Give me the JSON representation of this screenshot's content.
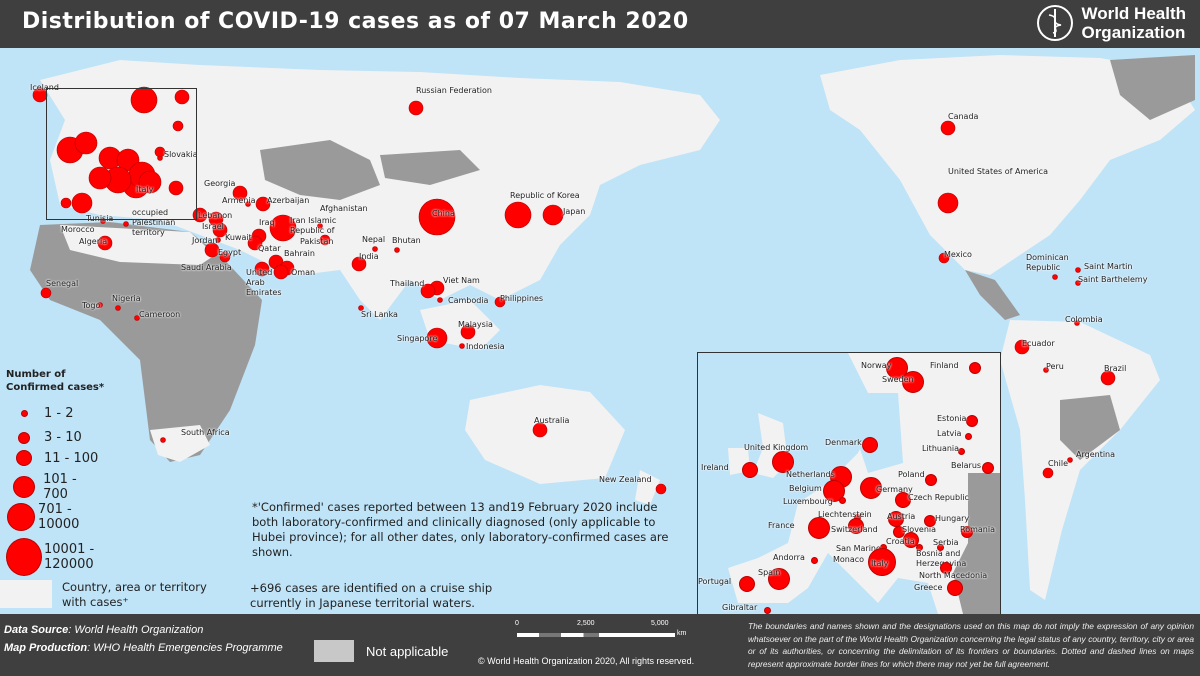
{
  "header": {
    "title": "Distribution of COVID-19 cases as of 07 March 2020",
    "org_line1": "World Health",
    "org_line2": "Organization"
  },
  "colors": {
    "bubble": "#ff0000",
    "header": "#3f3f3f",
    "ocean": "#bfe3f7",
    "land_cases": "#f2f2f2",
    "land_na": "#9a9a9a"
  },
  "legend": {
    "title_line1": "Number of",
    "title_line2": "Confirmed cases*",
    "ranges": [
      "1 - 2",
      "3 - 10",
      "11 - 100",
      "101 - 700",
      "701 - 10000",
      "10001 - 120000"
    ],
    "country_line1": "Country, area or territory",
    "country_line2": "with cases⁺"
  },
  "notes": {
    "confirmed": "*'Confirmed' cases reported between 13 and19 February 2020 include both laboratory-confirmed and clinically diagnosed (only applicable to Hubei province); for all other dates, only laboratory-confirmed cases are shown.",
    "cruise": "+696 cases are identified on a cruise ship currently in Japanese territorial waters."
  },
  "locations": [
    {
      "name": "China",
      "cases_range": "10001 - 120000"
    },
    {
      "name": "Republic of Korea",
      "cases_range": "701 - 10000"
    },
    {
      "name": "Japan",
      "cases_range": "101 - 700"
    },
    {
      "name": "Iran Islamic Republic of",
      "cases_range": "701 - 10000"
    },
    {
      "name": "Italy",
      "cases_range": "701 - 10000"
    },
    {
      "name": "Russian Federation",
      "cases_range": "11 - 100"
    },
    {
      "name": "Canada",
      "cases_range": "11 - 100"
    },
    {
      "name": "United States of America",
      "cases_range": "101 - 700"
    },
    {
      "name": "Mexico",
      "cases_range": "3 - 10"
    },
    {
      "name": "Dominican Republic",
      "cases_range": "1 - 2"
    },
    {
      "name": "Saint Martin",
      "cases_range": "1 - 2"
    },
    {
      "name": "Saint Barthelemy",
      "cases_range": "1 - 2"
    },
    {
      "name": "Colombia",
      "cases_range": "1 - 2"
    },
    {
      "name": "Ecuador",
      "cases_range": "11 - 100"
    },
    {
      "name": "Peru",
      "cases_range": "1 - 2"
    },
    {
      "name": "Brazil",
      "cases_range": "11 - 100"
    },
    {
      "name": "Chile",
      "cases_range": "3 - 10"
    },
    {
      "name": "Argentina",
      "cases_range": "1 - 2"
    },
    {
      "name": "Australia",
      "cases_range": "11 - 100"
    },
    {
      "name": "New Zealand",
      "cases_range": "3 - 10"
    },
    {
      "name": "Singapore",
      "cases_range": "101 - 700"
    },
    {
      "name": "Malaysia",
      "cases_range": "11 - 100"
    },
    {
      "name": "Indonesia",
      "cases_range": "1 - 2"
    },
    {
      "name": "Philippines",
      "cases_range": "3 - 10"
    },
    {
      "name": "Viet Nam",
      "cases_range": "11 - 100"
    },
    {
      "name": "Cambodia",
      "cases_range": "1 - 2"
    },
    {
      "name": "Thailand",
      "cases_range": "11 - 100"
    },
    {
      "name": "Sri Lanka",
      "cases_range": "1 - 2"
    },
    {
      "name": "India",
      "cases_range": "11 - 100"
    },
    {
      "name": "Nepal",
      "cases_range": "1 - 2"
    },
    {
      "name": "Bhutan",
      "cases_range": "1 - 2"
    },
    {
      "name": "Pakistan",
      "cases_range": "3 - 10"
    },
    {
      "name": "Afghanistan",
      "cases_range": "1 - 2"
    },
    {
      "name": "Georgia",
      "cases_range": "11 - 100"
    },
    {
      "name": "Armenia",
      "cases_range": "1 - 2"
    },
    {
      "name": "Azerbaijan",
      "cases_range": "11 - 100"
    },
    {
      "name": "Iraq",
      "cases_range": "11 - 100"
    },
    {
      "name": "Kuwait",
      "cases_range": "11 - 100"
    },
    {
      "name": "Bahrain",
      "cases_range": "11 - 100"
    },
    {
      "name": "Qatar",
      "cases_range": "11 - 100"
    },
    {
      "name": "United Arab Emirates",
      "cases_range": "11 - 100"
    },
    {
      "name": "Oman",
      "cases_range": "11 - 100"
    },
    {
      "name": "Saudi Arabia",
      "cases_range": "3 - 10"
    },
    {
      "name": "Egypt",
      "cases_range": "11 - 100"
    },
    {
      "name": "Jordan",
      "cases_range": "1 - 2"
    },
    {
      "name": "Israel",
      "cases_range": "11 - 100"
    },
    {
      "name": "Lebanon",
      "cases_range": "11 - 100"
    },
    {
      "name": "occupied Palestinian territory",
      "cases_range": "11 - 100"
    },
    {
      "name": "Tunisia",
      "cases_range": "1 - 2"
    },
    {
      "name": "Algeria",
      "cases_range": "11 - 100"
    },
    {
      "name": "Morocco",
      "cases_range": "1 - 2"
    },
    {
      "name": "Senegal",
      "cases_range": "3 - 10"
    },
    {
      "name": "Togo",
      "cases_range": "1 - 2"
    },
    {
      "name": "Nigeria",
      "cases_range": "1 - 2"
    },
    {
      "name": "Cameroon",
      "cases_range": "1 - 2"
    },
    {
      "name": "South Africa",
      "cases_range": "1 - 2"
    },
    {
      "name": "Iceland",
      "cases_range": "11 - 100"
    },
    {
      "name": "Slovakia",
      "cases_range": "1 - 2"
    }
  ],
  "inset": {
    "locations": [
      "Norway",
      "Sweden",
      "Finland",
      "Estonia",
      "Latvia",
      "Lithuania",
      "Belarus",
      "Denmark",
      "United Kingdom",
      "Ireland",
      "Netherlands",
      "Belgium",
      "Luxembourg",
      "Germany",
      "Poland",
      "Czech Republic",
      "Liechtenstein",
      "Austria",
      "France",
      "Switzerland",
      "Slovenia",
      "Hungary",
      "Croatia",
      "Romania",
      "San Marino",
      "Monaco",
      "Bosnia and Herzegovina",
      "Serbia",
      "Andorra",
      "Italy",
      "North Macedonia",
      "Greece",
      "Spain",
      "Portugal",
      "Gibraltar"
    ]
  },
  "footer": {
    "source_label": "Data Source",
    "source_value": ": World Health Organization",
    "production_label": "Map Production",
    "production_value": ": WHO Health Emergencies Programme",
    "na_label": "Not applicable",
    "scale_ticks": [
      "0",
      "2,500",
      "5,000"
    ],
    "scale_unit": "km",
    "copyright": "© World Health Organization  2020,  All rights reserved.",
    "disclaimer": "The boundaries and names shown and the designations used on this map do not imply the expression of any opinion whatsoever on the part of the World Health Organization concerning the legal status of any country, territory, city or area or of its authorities, or concerning the delimitation of its frontiers or boundaries. Dotted and dashed lines on maps represent approximate border lines for which there may not yet be full agreement."
  }
}
